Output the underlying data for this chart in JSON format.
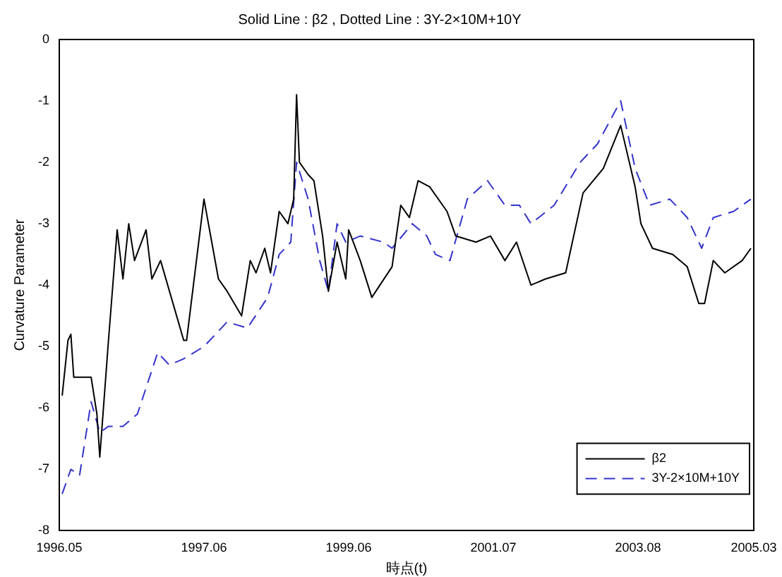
{
  "chart_data": {
    "type": "line",
    "title": "Solid Line : β2 , Dotted Line : 3Y-2×10M+10Y",
    "xlabel": "時点(t)",
    "ylabel": "Curvature Parameter",
    "categories": [
      "1996.05",
      null,
      null,
      null,
      null,
      null,
      null,
      null,
      null,
      null,
      null,
      null,
      null,
      null,
      null,
      null,
      null,
      null,
      null,
      null,
      null,
      null,
      null,
      null,
      null,
      null,
      null,
      null,
      null,
      null,
      null,
      null,
      null,
      null,
      null,
      null,
      null,
      null,
      null,
      null,
      null,
      null,
      null,
      null,
      null,
      null,
      null,
      null,
      null,
      null,
      "1997.06",
      null,
      null,
      null,
      null,
      null,
      null,
      null,
      null,
      null,
      null,
      null,
      null,
      null,
      null,
      null,
      null,
      null,
      null,
      null,
      null,
      null,
      null,
      null,
      null,
      null,
      null,
      null,
      null,
      null,
      null,
      null,
      null,
      null,
      null,
      null,
      null,
      null,
      null,
      null,
      null,
      null,
      null,
      null,
      null,
      null,
      null,
      null,
      null,
      null,
      "1999.06",
      null,
      null,
      null,
      null,
      null,
      null,
      null,
      null,
      null,
      null,
      null,
      null,
      null,
      null,
      null,
      null,
      null,
      null,
      null,
      null,
      null,
      null,
      null,
      null,
      null,
      null,
      null,
      null,
      null,
      null,
      null,
      null,
      null,
      null,
      null,
      null,
      null,
      null,
      null,
      null,
      null,
      null,
      null,
      null,
      null,
      null,
      null,
      null,
      null,
      "2001.07",
      null,
      null,
      null,
      null,
      null,
      null,
      null,
      null,
      null,
      null,
      null,
      null,
      null,
      null,
      null,
      null,
      null,
      null,
      null,
      null,
      null,
      null,
      null,
      null,
      null,
      null,
      null,
      null,
      null,
      null,
      null,
      null,
      null,
      null,
      null,
      null,
      null,
      null,
      null,
      null,
      null,
      null,
      null,
      null,
      null,
      null,
      null,
      null,
      null,
      "2003.08",
      null,
      null,
      null,
      null,
      null,
      null,
      null,
      null,
      null,
      null,
      null,
      null,
      null,
      null,
      null,
      null,
      null,
      null,
      null,
      null,
      null,
      null,
      null,
      null,
      null,
      null,
      null,
      null,
      null,
      null,
      null,
      null,
      null,
      null,
      null,
      null,
      null,
      null,
      null,
      "2005.03"
    ],
    "ylim": [
      -8,
      0
    ],
    "yticks": [
      -8,
      -7,
      -6,
      -5,
      -4,
      -3,
      -2,
      -1,
      0
    ],
    "grid": false,
    "legend": "bottom right",
    "marker": "none",
    "series": [
      {
        "name": "β2",
        "color": "#000000",
        "line_style": "solid",
        "values": [
          null,
          -5.8,
          null,
          -4.9,
          -4.8,
          -5.5,
          null,
          null,
          null,
          null,
          null,
          -5.5,
          null,
          -6.1,
          -6.8,
          null,
          null,
          -4.9,
          null,
          null,
          -3.1,
          null,
          -3.9,
          null,
          -3.0,
          null,
          -3.6,
          null,
          null,
          null,
          -3.1,
          null,
          -3.9,
          null,
          null,
          -3.6,
          null,
          null,
          null,
          null,
          null,
          null,
          null,
          -4.9,
          -4.9,
          null,
          null,
          null,
          null,
          null,
          -2.6,
          null,
          null,
          null,
          null,
          -3.9,
          null,
          null,
          -4.1,
          null,
          null,
          null,
          null,
          -4.5,
          null,
          null,
          -3.6,
          null,
          -3.8,
          null,
          null,
          -3.4,
          null,
          -3.8,
          null,
          null,
          -2.8,
          null,
          null,
          -3.0,
          null,
          -2.6,
          -0.9,
          -2.0,
          null,
          null,
          -2.2,
          null,
          -2.3,
          null,
          null,
          -3.2,
          null,
          -4.1,
          null,
          null,
          -3.3,
          null,
          null,
          -3.9,
          -3.1,
          null,
          null,
          null,
          -3.6,
          null,
          null,
          null,
          -4.2,
          null,
          null,
          null,
          null,
          null,
          null,
          -3.7,
          null,
          null,
          -2.7,
          null,
          null,
          -2.9,
          null,
          null,
          -2.3,
          null,
          null,
          null,
          -2.4,
          null,
          null,
          null,
          null,
          null,
          -2.8,
          null,
          null,
          -3.2,
          null,
          null,
          null,
          null,
          null,
          null,
          -3.3,
          null,
          null,
          null,
          null,
          -3.2,
          null,
          null,
          null,
          null,
          -3.6,
          null,
          null,
          null,
          -3.3,
          null,
          null,
          null,
          null,
          -4.0,
          null,
          null,
          null,
          null,
          -3.9,
          null,
          null,
          null,
          null,
          null,
          null,
          -3.8,
          null,
          null,
          null,
          null,
          null,
          -2.5,
          null,
          null,
          null,
          null,
          null,
          null,
          -2.1,
          null,
          null,
          null,
          null,
          null,
          -1.4,
          null,
          null,
          null,
          null,
          -2.4,
          null,
          -3.0,
          null,
          null,
          null,
          -3.4,
          null,
          null,
          null,
          null,
          null,
          null,
          -3.5,
          null,
          null,
          null,
          null,
          -3.7,
          null,
          null,
          null,
          -4.3,
          null,
          -4.3,
          null,
          null,
          -3.6,
          null,
          null,
          null,
          -3.8,
          null,
          null,
          null,
          null,
          null,
          -3.6,
          null,
          null,
          -3.4,
          null
        ]
      },
      {
        "name": "3Y-2×10M+10Y",
        "color": "#3333cc",
        "line_style": "dashed",
        "values": [
          null,
          -7.4,
          null,
          null,
          -7.0,
          null,
          null,
          -7.1,
          null,
          null,
          null,
          -5.9,
          null,
          null,
          -6.4,
          null,
          null,
          -6.3,
          null,
          null,
          null,
          null,
          -6.3,
          null,
          null,
          null,
          null,
          -6.1,
          null,
          null,
          null,
          null,
          null,
          null,
          -5.1,
          null,
          null,
          null,
          -5.3,
          null,
          null,
          null,
          null,
          -5.2,
          null,
          null,
          null,
          null,
          null,
          null,
          -5.0,
          null,
          null,
          null,
          null,
          null,
          null,
          null,
          -4.6,
          null,
          null,
          null,
          null,
          null,
          null,
          -4.7,
          null,
          null,
          null,
          null,
          null,
          null,
          -4.2,
          null,
          null,
          null,
          -3.5,
          null,
          null,
          null,
          -3.3,
          null,
          -2.0,
          null,
          null,
          null,
          -2.6,
          null,
          null,
          null,
          -3.6,
          null,
          null,
          -4.1,
          null,
          null,
          -3.0,
          null,
          null,
          -3.3,
          null,
          null,
          null,
          null,
          -3.2,
          null,
          null,
          null,
          null,
          null,
          null,
          null,
          -3.3,
          null,
          null,
          -3.4,
          null,
          null,
          null,
          null,
          null,
          null,
          -3.0,
          null,
          null,
          null,
          null,
          -3.2,
          null,
          null,
          -3.5,
          null,
          null,
          null,
          null,
          -3.6,
          null,
          null,
          null,
          null,
          null,
          -2.6,
          null,
          null,
          null,
          null,
          null,
          null,
          -2.3,
          null,
          null,
          null,
          null,
          null,
          -2.7,
          null,
          null,
          null,
          null,
          -2.7,
          null,
          null,
          null,
          -3.0,
          null,
          null,
          null,
          null,
          null,
          null,
          null,
          -2.7,
          null,
          null,
          null,
          null,
          null,
          null,
          null,
          null,
          -2.0,
          null,
          null,
          null,
          null,
          null,
          -1.7,
          null,
          null,
          null,
          null,
          null,
          null,
          null,
          -1.0,
          null,
          null,
          null,
          null,
          -2.1,
          null,
          null,
          null,
          null,
          -2.7,
          null,
          null,
          null,
          null,
          null,
          null,
          -2.6,
          null,
          null,
          null,
          null,
          null,
          -2.9,
          null,
          null,
          null,
          null,
          -3.4,
          null,
          null,
          null,
          -2.9,
          null,
          null,
          null,
          null,
          null,
          null,
          -2.8,
          null,
          null,
          null,
          null,
          null,
          -2.6,
          null
        ]
      }
    ]
  }
}
